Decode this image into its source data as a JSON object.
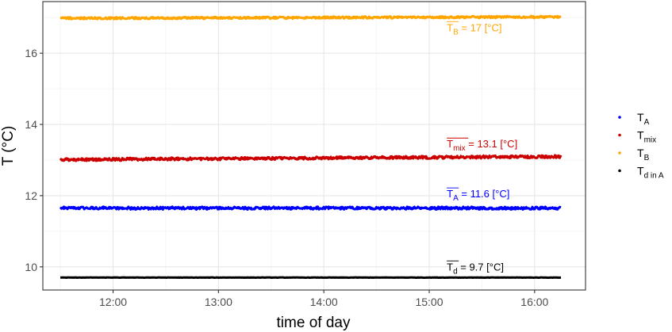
{
  "chart_data": {
    "type": "scatter",
    "xlabel": "time of day",
    "ylabel": "T (°C)",
    "xlim": [
      "11:20",
      "16:29"
    ],
    "ylim": [
      9.35,
      17.45
    ],
    "x_ticks": [
      "12:00",
      "13:00",
      "14:00",
      "15:00",
      "16:00"
    ],
    "y_ticks": [
      10,
      12,
      14,
      16
    ],
    "grid": true,
    "legend_position": "right",
    "x_range": [
      "11:30",
      "16:15"
    ],
    "series": [
      {
        "name": "T_A",
        "label_main": "T",
        "label_sub": "A",
        "color": "#0000ff",
        "mean": 11.65,
        "noise": 0.04
      },
      {
        "name": "T_mix",
        "label_main": "T",
        "label_sub": "mix",
        "color": "#cc0000",
        "mean_start": 13.01,
        "mean_end": 13.1,
        "noise": 0.04
      },
      {
        "name": "T_B",
        "label_main": "T",
        "label_sub": "B",
        "color": "#ffa500",
        "mean_start": 16.98,
        "mean_end": 17.02,
        "noise": 0.03
      },
      {
        "name": "T_d in A",
        "label_main": "T",
        "label_sub": "d in A",
        "color": "#000000",
        "mean": 9.7,
        "noise": 0.005
      }
    ],
    "annotations": [
      {
        "main": "T",
        "sub": "B",
        "text": " = 17 [°C]",
        "x": "15:10",
        "y": 16.62,
        "color": "#ffa500"
      },
      {
        "main": "T",
        "sub": "mix",
        "text": " = 13.1 [°C]",
        "x": "15:10",
        "y": 13.35,
        "color": "#cc0000"
      },
      {
        "main": "T",
        "sub": "A",
        "text": " = 11.6 [°C]",
        "x": "15:10",
        "y": 11.95,
        "color": "#0000ff"
      },
      {
        "main": "T",
        "sub": "d",
        "text": " = 9.7 [°C]",
        "x": "15:10",
        "y": 9.9,
        "color": "#000000"
      }
    ]
  }
}
